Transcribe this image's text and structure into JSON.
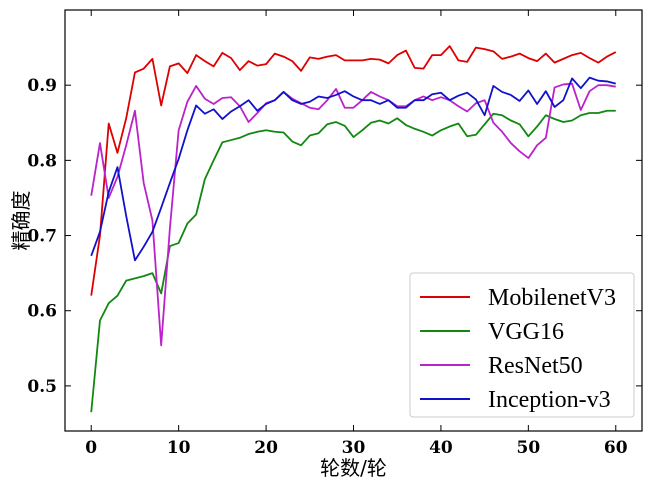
{
  "chart_data": {
    "type": "line",
    "xlabel": "轮数/轮",
    "ylabel": "精确度",
    "xlim": [
      -3,
      63
    ],
    "ylim": [
      0.44,
      1.0
    ],
    "xticks": [
      0,
      10,
      20,
      30,
      40,
      50,
      60
    ],
    "yticks": [
      0.5,
      0.6,
      0.7,
      0.8,
      0.9
    ],
    "ytick_labels": [
      "0.5",
      "0.6",
      "0.7",
      "0.8",
      "0.9"
    ],
    "grid": false,
    "legend_position": "bottom-right",
    "x": [
      0,
      1,
      2,
      3,
      4,
      5,
      6,
      7,
      8,
      9,
      10,
      11,
      12,
      13,
      14,
      15,
      16,
      17,
      18,
      19,
      20,
      21,
      22,
      23,
      24,
      25,
      26,
      27,
      28,
      29,
      30,
      31,
      32,
      33,
      34,
      35,
      36,
      37,
      38,
      39,
      40,
      41,
      42,
      43,
      44,
      45,
      46,
      47,
      48,
      49,
      50,
      51,
      52,
      53,
      54,
      55,
      56,
      57,
      58,
      59,
      60
    ],
    "series": [
      {
        "name": "MobilenetV3",
        "color": "#dd0000",
        "values": [
          0.62,
          0.7,
          0.849,
          0.81,
          0.856,
          0.917,
          0.922,
          0.935,
          0.873,
          0.925,
          0.929,
          0.916,
          0.94,
          0.932,
          0.925,
          0.943,
          0.936,
          0.92,
          0.932,
          0.926,
          0.928,
          0.942,
          0.938,
          0.932,
          0.919,
          0.937,
          0.935,
          0.938,
          0.94,
          0.933,
          0.933,
          0.933,
          0.935,
          0.934,
          0.929,
          0.94,
          0.946,
          0.923,
          0.922,
          0.94,
          0.94,
          0.952,
          0.933,
          0.931,
          0.95,
          0.948,
          0.945,
          0.935,
          0.938,
          0.942,
          0.936,
          0.932,
          0.942,
          0.93,
          0.935,
          0.94,
          0.943,
          0.936,
          0.93,
          0.938,
          0.944
        ]
      },
      {
        "name": "VGG16",
        "color": "#118811",
        "values": [
          0.465,
          0.587,
          0.61,
          0.62,
          0.64,
          0.643,
          0.646,
          0.65,
          0.623,
          0.686,
          0.69,
          0.716,
          0.728,
          0.775,
          0.8,
          0.824,
          0.827,
          0.83,
          0.835,
          0.838,
          0.84,
          0.838,
          0.837,
          0.825,
          0.82,
          0.833,
          0.836,
          0.848,
          0.851,
          0.846,
          0.831,
          0.84,
          0.85,
          0.853,
          0.849,
          0.856,
          0.847,
          0.842,
          0.838,
          0.833,
          0.84,
          0.845,
          0.849,
          0.832,
          0.834,
          0.848,
          0.862,
          0.86,
          0.853,
          0.848,
          0.832,
          0.845,
          0.86,
          0.855,
          0.851,
          0.853,
          0.86,
          0.863,
          0.863,
          0.866,
          0.866
        ]
      },
      {
        "name": "ResNet50",
        "color": "#bb22cc",
        "values": [
          0.753,
          0.823,
          0.75,
          0.778,
          0.82,
          0.866,
          0.77,
          0.72,
          0.554,
          0.71,
          0.84,
          0.878,
          0.899,
          0.882,
          0.875,
          0.883,
          0.884,
          0.872,
          0.851,
          0.863,
          0.876,
          0.88,
          0.891,
          0.882,
          0.876,
          0.87,
          0.868,
          0.88,
          0.895,
          0.87,
          0.87,
          0.88,
          0.891,
          0.885,
          0.88,
          0.872,
          0.872,
          0.88,
          0.885,
          0.88,
          0.884,
          0.88,
          0.872,
          0.865,
          0.876,
          0.88,
          0.85,
          0.838,
          0.823,
          0.812,
          0.803,
          0.82,
          0.83,
          0.897,
          0.901,
          0.902,
          0.867,
          0.892,
          0.9,
          0.9,
          0.898
        ]
      },
      {
        "name": "Inception-v3",
        "color": "#1111cc",
        "values": [
          0.673,
          0.705,
          0.758,
          0.791,
          0.726,
          0.667,
          0.685,
          0.705,
          0.737,
          0.77,
          0.802,
          0.84,
          0.873,
          0.862,
          0.868,
          0.855,
          0.865,
          0.872,
          0.88,
          0.866,
          0.875,
          0.88,
          0.891,
          0.88,
          0.875,
          0.878,
          0.885,
          0.883,
          0.887,
          0.892,
          0.885,
          0.88,
          0.88,
          0.875,
          0.88,
          0.87,
          0.87,
          0.88,
          0.88,
          0.888,
          0.89,
          0.88,
          0.886,
          0.89,
          0.881,
          0.86,
          0.899,
          0.891,
          0.887,
          0.879,
          0.893,
          0.875,
          0.892,
          0.871,
          0.88,
          0.909,
          0.896,
          0.91,
          0.906,
          0.905,
          0.902
        ]
      }
    ]
  }
}
